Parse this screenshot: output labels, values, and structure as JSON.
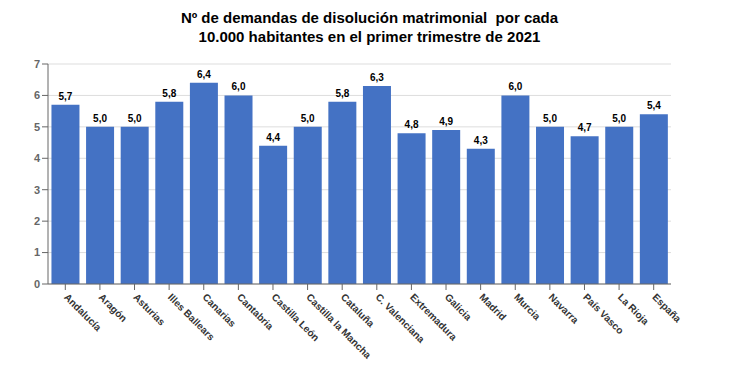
{
  "chart_data": {
    "type": "bar",
    "title": "Nº de demandas de disolución matrimonial  por cada\n10.000 habitantes en el primer trimestre de 2021",
    "categories": [
      "Andalucía",
      "Aragón",
      "Asturias",
      "Illes Ballears",
      "Canarias",
      "Cantabria",
      "Castilla León",
      "Castilla la Mancha",
      "Cataluña",
      "C. Valenciana",
      "Extremadura",
      "Galicia",
      "Madrid",
      "Murcia",
      "Navarra",
      "País Vasco",
      "La Rioja",
      "España"
    ],
    "values": [
      5.7,
      5.0,
      5.0,
      5.8,
      6.4,
      6.0,
      4.4,
      5.0,
      5.8,
      6.3,
      4.8,
      4.9,
      4.3,
      6.0,
      5.0,
      4.7,
      5.0,
      5.4
    ],
    "value_labels": [
      "5,7",
      "5,0",
      "5,0",
      "5,8",
      "6,4",
      "6,0",
      "4,4",
      "5,0",
      "5,8",
      "6,3",
      "4,8",
      "4,9",
      "4,3",
      "6,0",
      "5,0",
      "4,7",
      "5,0",
      "5,4"
    ],
    "color": "#4472C4",
    "ylim": [
      0,
      7
    ],
    "yticks": [
      0,
      1,
      2,
      3,
      4,
      5,
      6,
      7
    ],
    "grid": true,
    "data_labels": true
  }
}
